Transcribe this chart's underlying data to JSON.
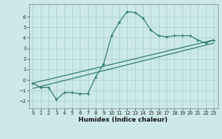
{
  "xlabel": "Humidex (Indice chaleur)",
  "ylabel": "",
  "background_color": "#cce8e8",
  "grid_color": "#aacfcf",
  "line_color": "#2a7a6a",
  "xlim": [
    -0.5,
    23.5
  ],
  "ylim": [
    -2.7,
    7.2
  ],
  "xticks": [
    0,
    1,
    2,
    3,
    4,
    5,
    6,
    7,
    8,
    9,
    10,
    11,
    12,
    13,
    14,
    15,
    16,
    17,
    18,
    19,
    20,
    21,
    22,
    23
  ],
  "yticks": [
    -2,
    -1,
    0,
    1,
    2,
    3,
    4,
    5,
    6
  ],
  "curve1_x": [
    0,
    1,
    2,
    3,
    4,
    5,
    6,
    7,
    8,
    9,
    10,
    11,
    12,
    13,
    14,
    15,
    16,
    17,
    18,
    19,
    20,
    21,
    22,
    23
  ],
  "curve1_y": [
    -0.3,
    -0.7,
    -0.7,
    -1.85,
    -1.2,
    -1.2,
    -1.3,
    -1.3,
    0.3,
    1.5,
    4.2,
    5.5,
    6.5,
    6.4,
    5.9,
    4.75,
    4.2,
    4.1,
    4.2,
    4.2,
    4.2,
    3.8,
    3.5,
    3.8
  ],
  "line1_x": [
    0,
    23
  ],
  "line1_y": [
    -0.3,
    3.8
  ],
  "line2_x": [
    0,
    23
  ],
  "line2_y": [
    -0.8,
    3.5
  ]
}
